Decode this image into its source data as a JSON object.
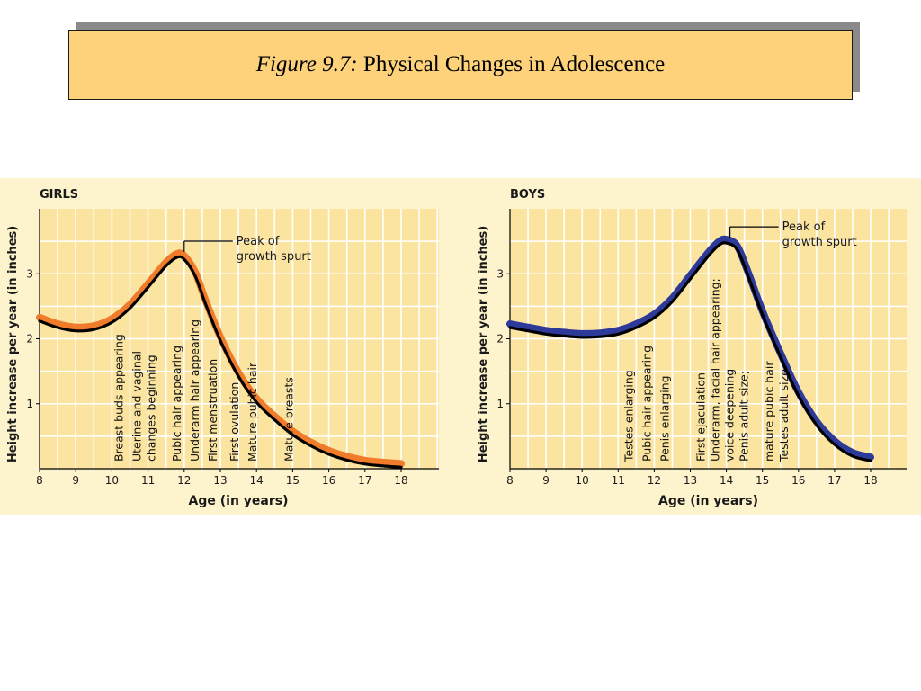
{
  "slide": {
    "figure_label": "Figure 9.7:",
    "title": "Physical Changes in Adolescence"
  },
  "colors": {
    "title_bg": "#fdd27a",
    "title_shadow": "#8a8a8a",
    "panel_bg": "#fdf3cc",
    "plot_bg": "#fbe4a0",
    "grid": "#ffffff",
    "girls_curve": "#f07b2b",
    "boys_curve": "#2e3a9a",
    "outline": "#000000"
  },
  "chart_data": [
    {
      "type": "line",
      "panel": "GIRLS",
      "xlabel": "Age (in years)",
      "ylabel": "Height increase per year (in inches)",
      "xlim": [
        8,
        18
      ],
      "ylim": [
        0,
        4
      ],
      "xticks": [
        8,
        9,
        10,
        11,
        12,
        13,
        14,
        15,
        16,
        17,
        18
      ],
      "yticks": [
        1,
        2,
        3
      ],
      "grid": true,
      "series": [
        {
          "color": "#f07b2b",
          "x": [
            8,
            8.5,
            9,
            9.5,
            10,
            10.5,
            11,
            11.5,
            11.8,
            12,
            12.3,
            12.6,
            13,
            13.5,
            14,
            14.5,
            15,
            15.5,
            16,
            16.5,
            17,
            17.5,
            18
          ],
          "y": [
            2.3,
            2.2,
            2.15,
            2.17,
            2.28,
            2.5,
            2.82,
            3.15,
            3.28,
            3.25,
            3.0,
            2.55,
            2.0,
            1.45,
            1.05,
            0.78,
            0.55,
            0.38,
            0.25,
            0.16,
            0.1,
            0.07,
            0.05
          ]
        }
      ],
      "peak_annotation": {
        "x": 12,
        "y": 3.28,
        "line1": "Peak of",
        "line2": "growth spurt"
      },
      "milestones": [
        {
          "x": 10.2,
          "y": 2.25,
          "text": "Breast buds appearing"
        },
        {
          "x": 10.7,
          "y": 2.55,
          "text": "Uterine and vaginal"
        },
        {
          "x": 11.1,
          "y": 2.8,
          "text": "changes beginning"
        },
        {
          "x": 11.8,
          "y": 3.1,
          "text": "Pubic hair appearing"
        },
        {
          "x": 12.3,
          "y": 3.05,
          "text": "Underarm hair appearing"
        },
        {
          "x": 12.8,
          "y": 2.55,
          "text": "First menstruation"
        },
        {
          "x": 13.4,
          "y": 1.6,
          "text": "First ovulation"
        },
        {
          "x": 13.9,
          "y": 1.25,
          "text": "Mature pubic hair"
        },
        {
          "x": 14.9,
          "y": 0.95,
          "text": "Mature breasts"
        }
      ]
    },
    {
      "type": "line",
      "panel": "BOYS",
      "xlabel": "Age (in years)",
      "ylabel": "Height increase per year (in inches)",
      "xlim": [
        8,
        18
      ],
      "ylim": [
        0,
        4
      ],
      "xticks": [
        8,
        9,
        10,
        11,
        12,
        13,
        14,
        15,
        16,
        17,
        18
      ],
      "yticks": [
        1,
        2,
        3
      ],
      "grid": true,
      "series": [
        {
          "color": "#2e3a9a",
          "x": [
            8,
            8.5,
            9,
            9.5,
            10,
            10.5,
            11,
            11.5,
            12,
            12.5,
            13,
            13.5,
            13.8,
            14,
            14.3,
            14.6,
            15,
            15.5,
            16,
            16.5,
            17,
            17.5,
            18
          ],
          "y": [
            2.2,
            2.15,
            2.1,
            2.07,
            2.05,
            2.06,
            2.1,
            2.2,
            2.35,
            2.6,
            2.95,
            3.3,
            3.47,
            3.5,
            3.4,
            3.0,
            2.4,
            1.75,
            1.15,
            0.7,
            0.4,
            0.22,
            0.15
          ]
        }
      ],
      "peak_annotation": {
        "x": 14.1,
        "y": 3.5,
        "line1": "Peak of",
        "line2": "growth spurt"
      },
      "milestones": [
        {
          "x": 11.3,
          "y": 2.15,
          "text": "Testes enlarging"
        },
        {
          "x": 11.8,
          "y": 2.25,
          "text": "Pubic hair appearing"
        },
        {
          "x": 12.3,
          "y": 2.45,
          "text": "Penis enlarging"
        },
        {
          "x": 13.3,
          "y": 3.1,
          "text": "First ejaculation"
        },
        {
          "x": 13.7,
          "y": 3.4,
          "text": "Underarm, facial hair appearing;"
        },
        {
          "x": 14.1,
          "y": 3.45,
          "text": "voice deepening"
        },
        {
          "x": 14.5,
          "y": 3.1,
          "text": "Penis adult size;"
        },
        {
          "x": 15.2,
          "y": 2.1,
          "text": "mature pubic hair"
        },
        {
          "x": 15.6,
          "y": 1.6,
          "text": "Testes adult size"
        }
      ]
    }
  ]
}
